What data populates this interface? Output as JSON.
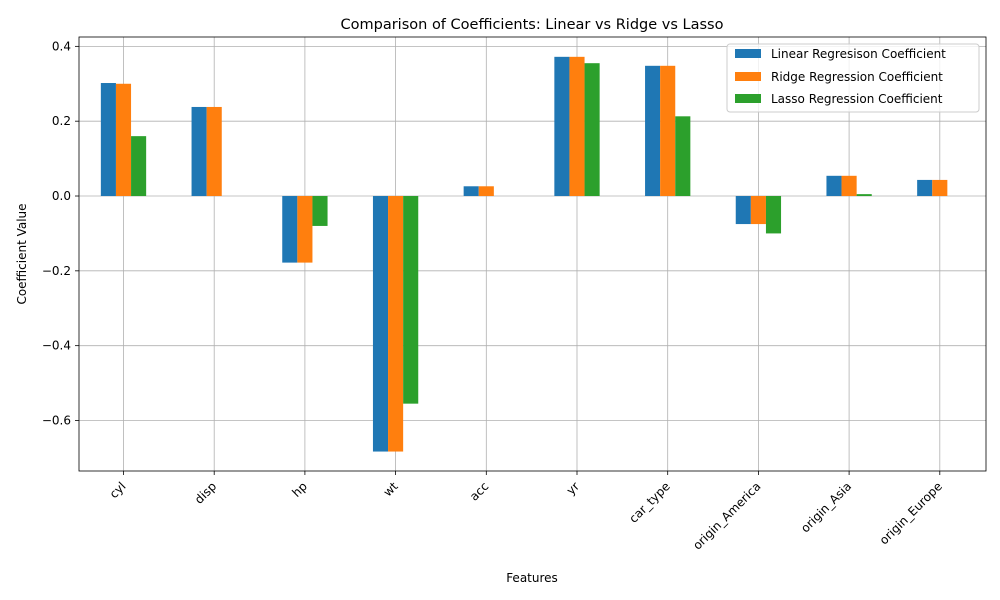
{
  "chart_data": {
    "type": "bar",
    "title": "Comparison of Coefficients: Linear vs Ridge vs Lasso",
    "xlabel": "Features",
    "ylabel": "Coefficient Value",
    "categories": [
      "cyl",
      "disp",
      "hp",
      "wt",
      "acc",
      "yr",
      "car_type",
      "origin_America",
      "origin_Asia",
      "origin_Europe"
    ],
    "series": [
      {
        "name": "Linear Regresison Coefficient",
        "color": "#1f77b4",
        "values": [
          0.302,
          0.238,
          -0.178,
          -0.683,
          0.026,
          0.372,
          0.348,
          -0.075,
          0.054,
          0.043
        ]
      },
      {
        "name": "Ridge Regression Coefficient",
        "color": "#ff7f0e",
        "values": [
          0.3,
          0.238,
          -0.178,
          -0.683,
          0.026,
          0.372,
          0.348,
          -0.075,
          0.054,
          0.043
        ]
      },
      {
        "name": "Lasso Regression Coefficient",
        "color": "#2ca02c",
        "values": [
          0.16,
          0.0,
          -0.08,
          -0.555,
          0.0,
          0.355,
          0.213,
          -0.1,
          0.005,
          0.0
        ]
      }
    ],
    "ylim": [
      -0.735,
      0.425
    ],
    "yticks": [
      -0.6,
      -0.4,
      -0.2,
      0.0,
      0.2,
      0.4
    ],
    "ytick_labels": [
      "−0.6",
      "−0.4",
      "−0.2",
      "0.0",
      "0.2",
      "0.4"
    ],
    "grid": true,
    "legend_position": "top-right"
  }
}
